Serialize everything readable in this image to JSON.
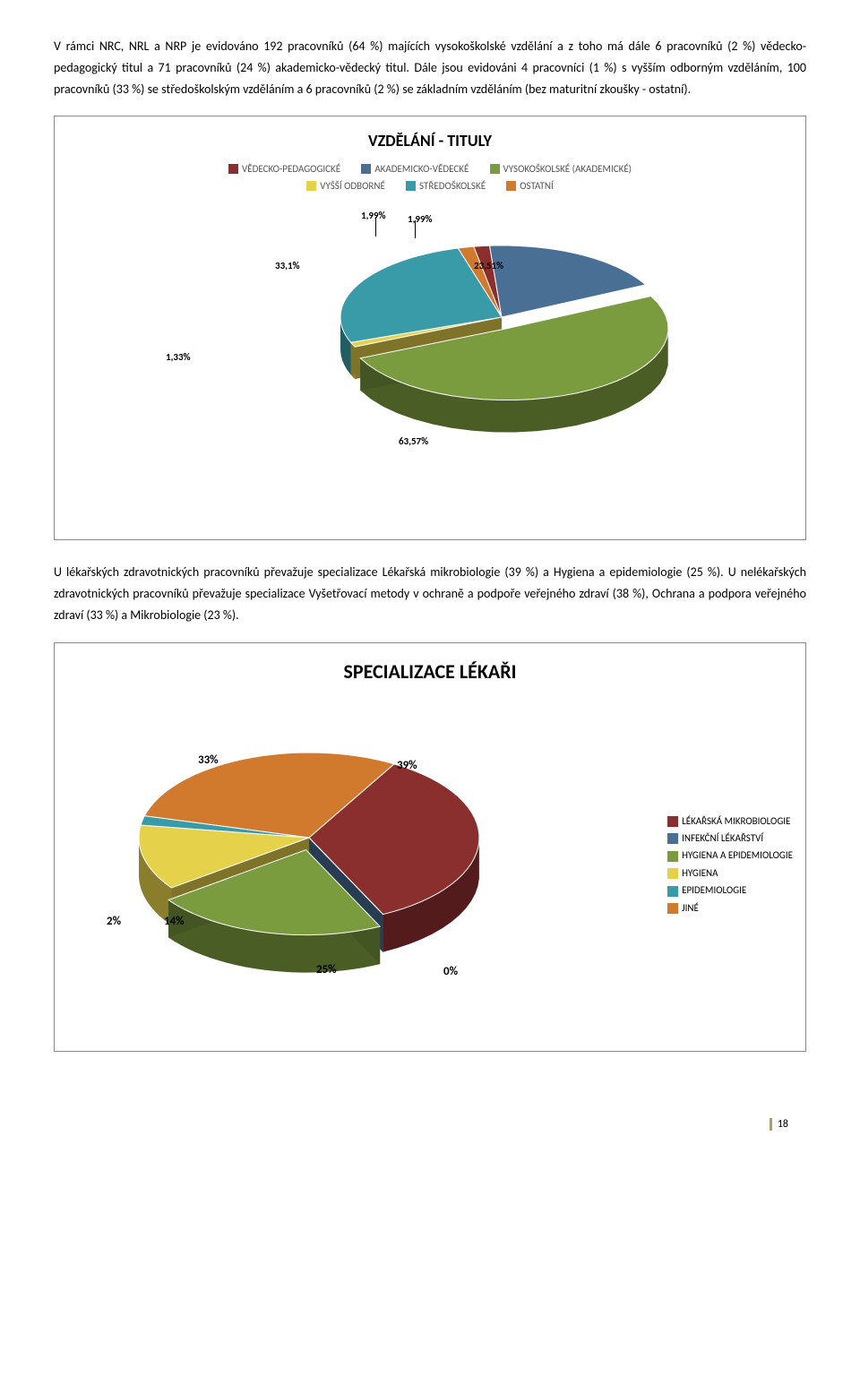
{
  "para1": "V rámci NRC, NRL a NRP je evidováno 192 pracovníků (64 %) majících vysokoškolské vzdělání a z toho má dále 6 pracovníků (2 %) vědecko-pedagogický titul a 71 pracovníků (24 %) akademicko-vědecký titul. Dále jsou evidováni 4 pracovníci (1 %) s vyšším odborným vzděláním, 100 pracovníků (33 %) se středoškolským vzděláním a 6 pracovníků (2 %) se základním vzděláním (bez maturitní zkoušky - ostatní).",
  "chart1": {
    "type": "pie-3d",
    "title": "VZDĚLÁNÍ - TITULY",
    "legend": [
      {
        "label": "VĚDECKO-PEDAGOGICKÉ",
        "color": "#8b2e2e"
      },
      {
        "label": "AKADEMICKO-VĚDECKÉ",
        "color": "#4a6f94"
      },
      {
        "label": "VYSOKOŠKOLSKÉ (AKADEMICKÉ)",
        "color": "#7a9b3e"
      },
      {
        "label": "VYŠŠÍ ODBORNÉ",
        "color": "#e6d24a"
      },
      {
        "label": "STŘEDOŠKOLSKÉ",
        "color": "#3a9ba8"
      },
      {
        "label": "OSTATNÍ",
        "color": "#d17a2e"
      }
    ],
    "slices": [
      {
        "label": "1,99%",
        "value": 1.99,
        "color": "#8b2e2e"
      },
      {
        "label": "23,51%",
        "value": 23.51,
        "color": "#4a6f94"
      },
      {
        "label": "63,57%",
        "value": 63.57,
        "color": "#7a9b3e",
        "explode": true
      },
      {
        "label": "1,33%",
        "value": 1.33,
        "color": "#e6d24a"
      },
      {
        "label": "33,1%",
        "value": 33.1,
        "color": "#3a9ba8"
      },
      {
        "label": "1,99%",
        "value": 1.99,
        "color": "#d17a2e"
      }
    ],
    "background_color": "#ffffff",
    "label_fontsize": 11,
    "title_fontsize": 18
  },
  "para2": "U lékařských zdravotnických pracovníků převažuje specializace Lékařská mikrobiologie (39 %) a Hygiena a epidemiologie (25 %). U nelékařských zdravotnických pracovníků převažuje specializace Vyšetřovací metody v ochraně a podpoře veřejného zdraví (38 %), Ochrana a podpora veřejného zdraví (33 %) a Mikrobiologie (23 %).",
  "chart2": {
    "type": "pie-3d",
    "title": "SPECIALIZACE LÉKAŘI",
    "legend": [
      {
        "label": "LÉKAŘSKÁ MIKROBIOLOGIE",
        "color": "#8b2e2e"
      },
      {
        "label": "INFEKČNÍ LÉKAŘSTVÍ",
        "color": "#4a6f94"
      },
      {
        "label": "HYGIENA A EPIDEMIOLOGIE",
        "color": "#7a9b3e"
      },
      {
        "label": "HYGIENA",
        "color": "#e6d24a"
      },
      {
        "label": "EPIDEMIOLOGIE",
        "color": "#3a9ba8"
      },
      {
        "label": "JINÉ",
        "color": "#d17a2e"
      }
    ],
    "slices": [
      {
        "label": "39%",
        "value": 39,
        "color": "#8b2e2e"
      },
      {
        "label": "0%",
        "value": 0,
        "color": "#4a6f94"
      },
      {
        "label": "25%",
        "value": 25,
        "color": "#7a9b3e",
        "explode": true
      },
      {
        "label": "14%",
        "value": 14,
        "color": "#e6d24a"
      },
      {
        "label": "2%",
        "value": 2,
        "color": "#3a9ba8"
      },
      {
        "label": "33%",
        "value": 33,
        "color": "#d17a2e"
      }
    ],
    "background_color": "#ffffff",
    "label_fontsize": 13,
    "title_fontsize": 22
  },
  "page_number": "18"
}
